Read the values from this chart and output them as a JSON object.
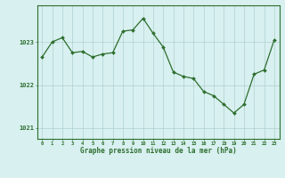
{
  "hours": [
    0,
    1,
    2,
    3,
    4,
    5,
    6,
    7,
    8,
    9,
    10,
    11,
    12,
    13,
    14,
    15,
    16,
    17,
    18,
    19,
    20,
    21,
    22,
    23
  ],
  "pressure": [
    1022.65,
    1023.0,
    1023.1,
    1022.75,
    1022.78,
    1022.65,
    1022.72,
    1022.75,
    1023.25,
    1023.28,
    1023.55,
    1023.2,
    1022.88,
    1022.3,
    1022.2,
    1022.15,
    1021.85,
    1021.75,
    1021.55,
    1021.35,
    1021.55,
    1022.25,
    1022.35,
    1023.05
  ],
  "line_color": "#2d6e2d",
  "marker_color": "#2d6e2d",
  "bg_color": "#d8f0f0",
  "grid_color": "#b0d0d0",
  "border_color": "#2d6e2d",
  "xlabel": "Graphe pression niveau de la mer (hPa)",
  "xlabel_color": "#2d6e2d",
  "tick_color": "#2d6e2d",
  "ytick_labels": [
    1021,
    1022,
    1023
  ],
  "ylim": [
    1020.75,
    1023.85
  ],
  "xlim": [
    -0.5,
    23.5
  ]
}
